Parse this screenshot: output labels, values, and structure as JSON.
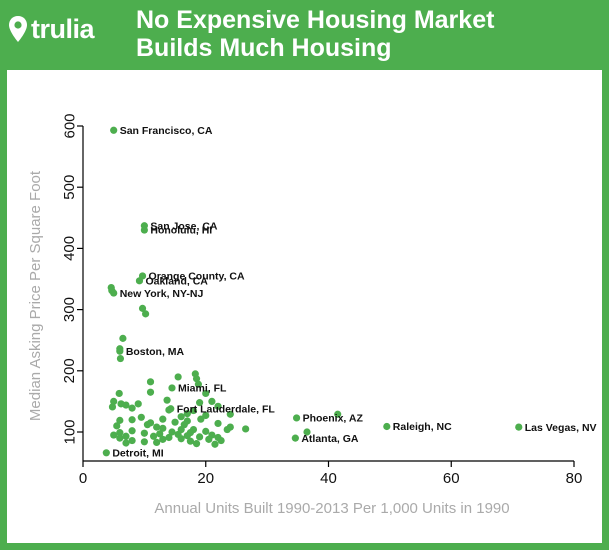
{
  "header": {
    "brand_name": "trulia",
    "title_line1": "No Expensive Housing Market",
    "title_line2": "Builds Much Housing"
  },
  "colors": {
    "brand_green": "#4dae4e",
    "point_green": "#4dae4e",
    "panel_background": "#ffffff",
    "axis_title_gray": "#aaaaaa"
  },
  "chart_data": {
    "type": "scatter",
    "title": "No Expensive Housing Market Builds Much Housing",
    "xlabel": "Annual Units Built 1990-2013 Per 1,000 Units in 1990",
    "ylabel": "Median Asking Price Per Square Foot",
    "xlim": [
      0,
      80
    ],
    "ylim": [
      50,
      620
    ],
    "xticks": [
      0,
      20,
      40,
      60,
      80
    ],
    "yticks": [
      100,
      200,
      300,
      400,
      500,
      600
    ],
    "labeled_points": [
      {
        "name": "San Francisco, CA",
        "x": 5.0,
        "y": 593
      },
      {
        "name": "San Jose, CA",
        "x": 10.0,
        "y": 437
      },
      {
        "name": "Honolulu, HI",
        "x": 10.0,
        "y": 430
      },
      {
        "name": "Orange County, CA",
        "x": 9.7,
        "y": 355
      },
      {
        "name": "Oakland, CA",
        "x": 9.2,
        "y": 347
      },
      {
        "name": "New York, NY-NJ",
        "x": 5.0,
        "y": 327
      },
      {
        "name": "Boston, MA",
        "x": 6.0,
        "y": 232
      },
      {
        "name": "Miami, FL",
        "x": 14.5,
        "y": 172
      },
      {
        "name": "Fort Lauderdale, FL",
        "x": 14.3,
        "y": 138
      },
      {
        "name": "Phoenix, AZ",
        "x": 34.8,
        "y": 123
      },
      {
        "name": "Atlanta, GA",
        "x": 34.6,
        "y": 90
      },
      {
        "name": "Raleigh, NC",
        "x": 49.5,
        "y": 109
      },
      {
        "name": "Las Vegas, NV",
        "x": 71.0,
        "y": 108
      },
      {
        "name": "Detroit, MI",
        "x": 3.8,
        "y": 66
      }
    ],
    "unlabeled_points": [
      {
        "x": 4.6,
        "y": 336
      },
      {
        "x": 4.7,
        "y": 331
      },
      {
        "x": 9.7,
        "y": 302
      },
      {
        "x": 10.2,
        "y": 293
      },
      {
        "x": 6.5,
        "y": 253
      },
      {
        "x": 6.0,
        "y": 236
      },
      {
        "x": 6.1,
        "y": 220
      },
      {
        "x": 18.3,
        "y": 195
      },
      {
        "x": 18.5,
        "y": 187
      },
      {
        "x": 15.5,
        "y": 190
      },
      {
        "x": 11.0,
        "y": 182
      },
      {
        "x": 18.8,
        "y": 178
      },
      {
        "x": 11.0,
        "y": 165
      },
      {
        "x": 20.0,
        "y": 163
      },
      {
        "x": 5.9,
        "y": 163
      },
      {
        "x": 13.7,
        "y": 152
      },
      {
        "x": 5.0,
        "y": 150
      },
      {
        "x": 19.0,
        "y": 148
      },
      {
        "x": 21.0,
        "y": 150
      },
      {
        "x": 6.2,
        "y": 146
      },
      {
        "x": 7.0,
        "y": 144
      },
      {
        "x": 9.0,
        "y": 146
      },
      {
        "x": 22.0,
        "y": 142
      },
      {
        "x": 4.8,
        "y": 141
      },
      {
        "x": 8.0,
        "y": 139
      },
      {
        "x": 14.0,
        "y": 136
      },
      {
        "x": 18.0,
        "y": 135
      },
      {
        "x": 17.0,
        "y": 130
      },
      {
        "x": 24.0,
        "y": 129
      },
      {
        "x": 41.5,
        "y": 129
      },
      {
        "x": 20.0,
        "y": 127
      },
      {
        "x": 16.0,
        "y": 125
      },
      {
        "x": 9.5,
        "y": 124
      },
      {
        "x": 19.2,
        "y": 121
      },
      {
        "x": 13.0,
        "y": 121
      },
      {
        "x": 6.0,
        "y": 119
      },
      {
        "x": 8.0,
        "y": 120
      },
      {
        "x": 17.0,
        "y": 118
      },
      {
        "x": 15.0,
        "y": 116
      },
      {
        "x": 11.0,
        "y": 115
      },
      {
        "x": 22.0,
        "y": 114
      },
      {
        "x": 10.5,
        "y": 112
      },
      {
        "x": 16.5,
        "y": 112
      },
      {
        "x": 12.0,
        "y": 108
      },
      {
        "x": 24.0,
        "y": 108
      },
      {
        "x": 5.5,
        "y": 110
      },
      {
        "x": 13.0,
        "y": 106
      },
      {
        "x": 16.0,
        "y": 104
      },
      {
        "x": 26.5,
        "y": 105
      },
      {
        "x": 23.5,
        "y": 104
      },
      {
        "x": 18.0,
        "y": 104
      },
      {
        "x": 20.0,
        "y": 101
      },
      {
        "x": 14.5,
        "y": 100
      },
      {
        "x": 8.0,
        "y": 102
      },
      {
        "x": 17.5,
        "y": 99
      },
      {
        "x": 6.0,
        "y": 99
      },
      {
        "x": 10.0,
        "y": 98
      },
      {
        "x": 12.5,
        "y": 97
      },
      {
        "x": 15.5,
        "y": 96
      },
      {
        "x": 21.0,
        "y": 95
      },
      {
        "x": 5.0,
        "y": 95
      },
      {
        "x": 17.0,
        "y": 94
      },
      {
        "x": 7.0,
        "y": 93
      },
      {
        "x": 11.5,
        "y": 93
      },
      {
        "x": 19.0,
        "y": 92
      },
      {
        "x": 14.0,
        "y": 91
      },
      {
        "x": 22.0,
        "y": 91
      },
      {
        "x": 6.0,
        "y": 90
      },
      {
        "x": 16.0,
        "y": 89
      },
      {
        "x": 13.0,
        "y": 88
      },
      {
        "x": 20.5,
        "y": 88
      },
      {
        "x": 8.0,
        "y": 86
      },
      {
        "x": 22.5,
        "y": 86
      },
      {
        "x": 17.5,
        "y": 85
      },
      {
        "x": 10.0,
        "y": 84
      },
      {
        "x": 12.0,
        "y": 83
      },
      {
        "x": 7.0,
        "y": 82
      },
      {
        "x": 18.5,
        "y": 81
      },
      {
        "x": 21.5,
        "y": 80
      },
      {
        "x": 36.5,
        "y": 100
      }
    ]
  }
}
